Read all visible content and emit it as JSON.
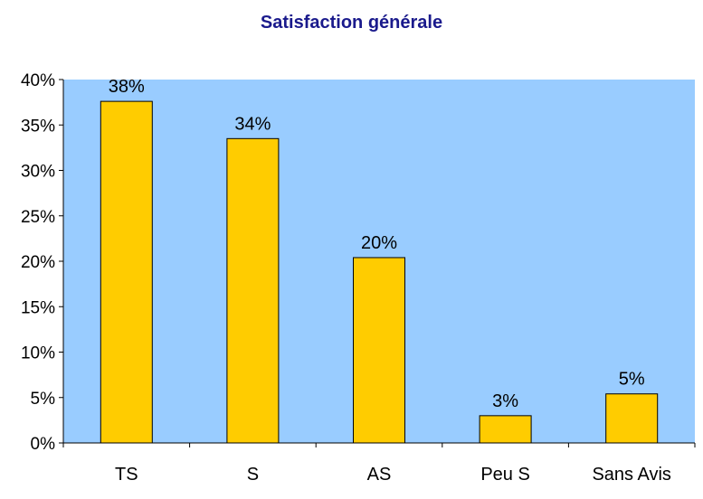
{
  "chart_data": {
    "type": "bar",
    "title": "Satisfaction générale",
    "categories": [
      "TS",
      "S",
      "AS",
      "Peu S",
      "Sans Avis"
    ],
    "values": [
      37.6,
      33.5,
      20.4,
      3.0,
      5.4
    ],
    "data_labels": [
      "38%",
      "34%",
      "20%",
      "3%",
      "5%"
    ],
    "ylim": [
      0,
      40
    ],
    "y_ticks": [
      "0%",
      "5%",
      "10%",
      "15%",
      "20%",
      "25%",
      "30%",
      "35%",
      "40%"
    ],
    "xlabel": "",
    "ylabel": "",
    "grid": false,
    "legend": "none",
    "colors": {
      "plot_background": "#99CCFF",
      "bar_fill": "#FFCC00",
      "bar_stroke": "#000000",
      "title": "#1a1a8c",
      "axis": "#000000"
    }
  }
}
